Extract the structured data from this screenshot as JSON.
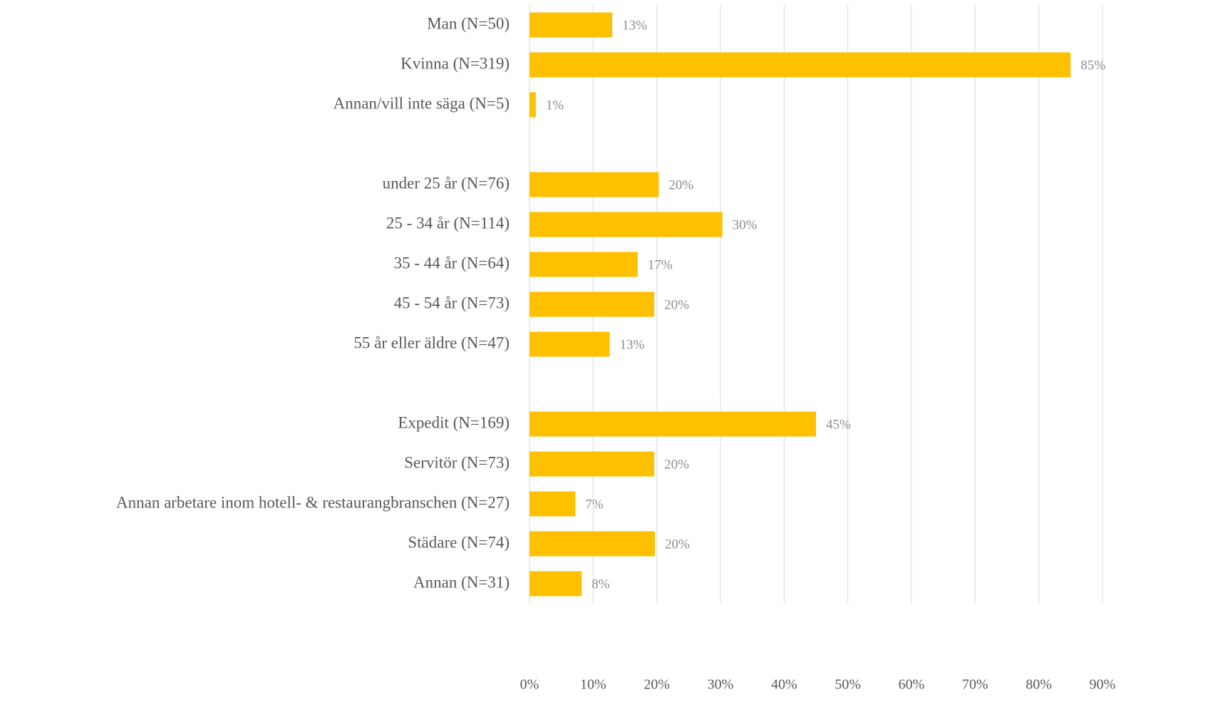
{
  "chart_data": {
    "type": "hbar",
    "categories": [
      "Man (N=50)",
      "Kvinna (N=319)",
      "Annan/vill inte säga (N=5)",
      null,
      "under 25 år (N=76)",
      "25 - 34 år (N=114)",
      "35 - 44 år (N=64)",
      "45 - 54 år (N=73)",
      "55 år eller äldre (N=47)",
      null,
      "Expedit (N=169)",
      "Servitör (N=73)",
      "Annan arbetare inom hotell- & restaurangbranschen (N=27)",
      "Städare (N=74)",
      "Annan (N=31)"
    ],
    "values": [
      13,
      85,
      1,
      null,
      20.3,
      30.3,
      17,
      19.6,
      12.6,
      null,
      45,
      19.6,
      7.2,
      19.7,
      8.2
    ],
    "value_labels": [
      "13%",
      "85%",
      "1%",
      null,
      "20%",
      "30%",
      "17%",
      "20%",
      "13%",
      null,
      "45%",
      "20%",
      "7%",
      "20%",
      "8%"
    ],
    "color": "#ffc000",
    "xlim": [
      0,
      90
    ],
    "xticks": [
      {
        "value": 0,
        "label": "0%"
      },
      {
        "value": 10,
        "label": "10%"
      },
      {
        "value": 20,
        "label": "20%"
      },
      {
        "value": 30,
        "label": "30%"
      },
      {
        "value": 40,
        "label": "40%"
      },
      {
        "value": 50,
        "label": "50%"
      },
      {
        "value": 60,
        "label": "60%"
      },
      {
        "value": 70,
        "label": "70%"
      },
      {
        "value": 80,
        "label": "80%"
      },
      {
        "value": 90,
        "label": "90%"
      }
    ],
    "grid": true
  }
}
